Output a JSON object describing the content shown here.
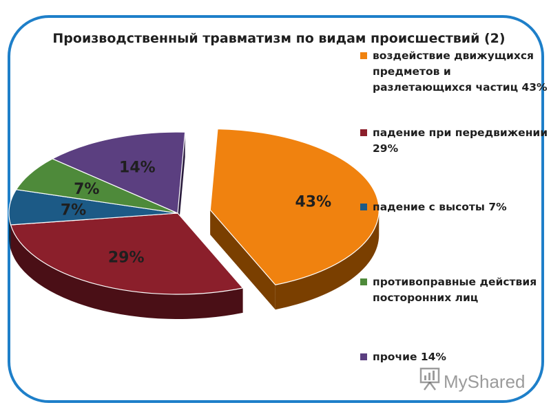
{
  "chart_data": {
    "type": "pie",
    "title": "Производственный травматизм по видам происшествий (2)",
    "slices": [
      {
        "name": "воздействие движущихся предметов и разлетающихся частиц 43%",
        "value": 43,
        "label": "43%",
        "color": "#f0820f",
        "side": "#7a3f00",
        "exploded": true
      },
      {
        "name": "падение при передвижении 29%",
        "value": 29,
        "label": "29%",
        "color": "#8b1f2b",
        "side": "#4a0f16",
        "exploded": false
      },
      {
        "name": "падение с высоты 7%",
        "value": 7,
        "label": "7%",
        "color": "#1c5a86",
        "side": "#0c2c44",
        "exploded": false
      },
      {
        "name": "противоправные действия посторонних лиц",
        "value": 7,
        "label": "7%",
        "color": "#4e8a3a",
        "side": "#24451a",
        "exploded": false
      },
      {
        "name": "прочие 14%",
        "value": 14,
        "label": "14%",
        "color": "#5b3f80",
        "side": "#2a1c3d",
        "exploded": false
      }
    ],
    "legend_position": "right",
    "legend_lines": [
      [
        "воздействие движущихся",
        "предметов и",
        "разлетающихся частиц 43%"
      ],
      [
        "падение при передвижении",
        "29%"
      ],
      [
        "падение с высоты 7%"
      ],
      [
        "противоправные действия",
        "посторонних лиц"
      ],
      [
        "прочие 14%"
      ]
    ]
  },
  "frame_color": "#1e7fc9",
  "watermark": {
    "text": "MyShared"
  }
}
